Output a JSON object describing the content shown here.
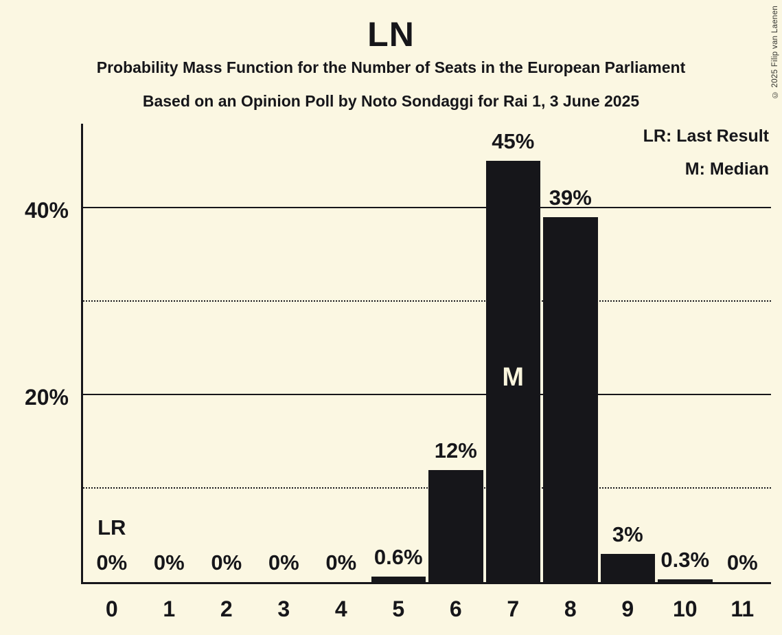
{
  "title": "LN",
  "subtitle1": "Probability Mass Function for the Number of Seats in the European Parliament",
  "subtitle2": "Based on an Opinion Poll by Noto Sondaggi for Rai 1, 3 June 2025",
  "copyright": "© 2025 Filip van Laenen",
  "legend": {
    "lr": "LR: Last Result",
    "m": "M: Median"
  },
  "colors": {
    "background": "#fbf7e2",
    "bar": "#16161a",
    "ink": "#16161a",
    "cream": "#faf5dd"
  },
  "chart_data": {
    "type": "bar",
    "title": "LN",
    "categories": [
      "0",
      "1",
      "2",
      "3",
      "4",
      "5",
      "6",
      "7",
      "8",
      "9",
      "10",
      "11"
    ],
    "values": [
      0,
      0,
      0,
      0,
      0,
      0.6,
      12,
      45,
      39,
      3,
      0.3,
      0
    ],
    "labels": [
      "0%",
      "0%",
      "0%",
      "0%",
      "0%",
      "0.6%",
      "12%",
      "45%",
      "39%",
      "3%",
      "0.3%",
      "0%"
    ],
    "ylim": [
      0,
      49
    ],
    "yticks": [
      {
        "value": 20,
        "label": "20%"
      },
      {
        "value": 40,
        "label": "40%"
      }
    ],
    "gridlines": [
      {
        "value": 10,
        "style": "dotted"
      },
      {
        "value": 20,
        "style": "solid"
      },
      {
        "value": 30,
        "style": "dotted"
      },
      {
        "value": 40,
        "style": "solid"
      }
    ],
    "legend_position": "top-right",
    "grid": true,
    "annotations": {
      "lr_label": "LR",
      "lr_seat": 0,
      "median_label": "M",
      "median_seat": 7
    }
  }
}
